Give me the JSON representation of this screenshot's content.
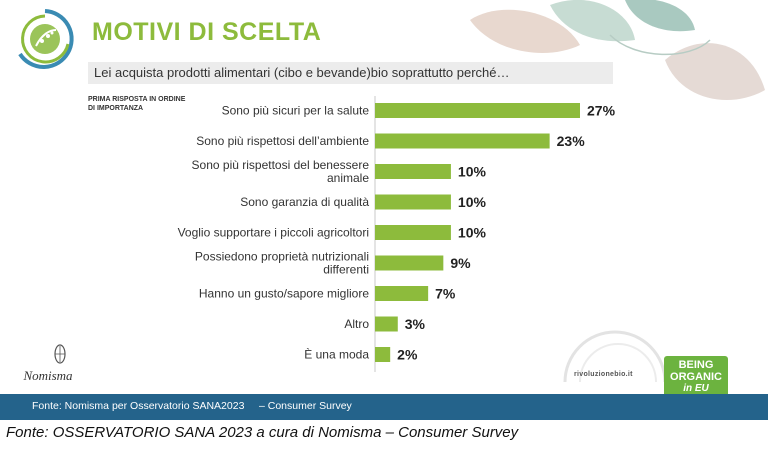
{
  "header": {
    "title": "MOTIVI DI SCELTA",
    "question": "Lei acquista prodotti alimentari (cibo e bevande)bio soprattutto perché…",
    "ordering_note_line1": "PRIMA RISPOSTA IN ORDINE",
    "ordering_note_line2": "DI IMPORTANZA"
  },
  "chart_data": {
    "type": "bar",
    "orientation": "horizontal",
    "title": "MOTIVI DI SCELTA",
    "categories": [
      [
        "Sono più sicuri per la salute"
      ],
      [
        "Sono più rispettosi dell’ambiente"
      ],
      [
        "Sono più rispettosi del benessere",
        "animale"
      ],
      [
        "Sono garanzia di qualità"
      ],
      [
        "Voglio supportare i piccoli agricoltori"
      ],
      [
        "Possiedono proprietà nutrizionali",
        "differenti"
      ],
      [
        "Hanno un gusto/sapore migliore"
      ],
      [
        "Altro"
      ],
      [
        "È una moda"
      ]
    ],
    "values": [
      27,
      23,
      10,
      10,
      10,
      9,
      7,
      3,
      2
    ],
    "value_labels": [
      "27%",
      "23%",
      "10%",
      "10%",
      "10%",
      "9%",
      "7%",
      "3%",
      "2%"
    ],
    "unit": "%",
    "xlim": [
      0,
      27
    ],
    "grid": false,
    "bar_color": "#8dbb3c"
  },
  "logos": {
    "nomisma": "Nomisma",
    "rivoluzione": "rivoluzionebio.it",
    "being_line1": "BEING",
    "being_line2": "ORGANIC",
    "being_line3": "in EU"
  },
  "footer": {
    "source": "Fonte: Nomisma per Osservatorio SANA2023     – Consumer Survey"
  },
  "caption": "Fonte: OSSERVATORIO SANA 2023 a cura di Nomisma – Consumer Survey"
}
